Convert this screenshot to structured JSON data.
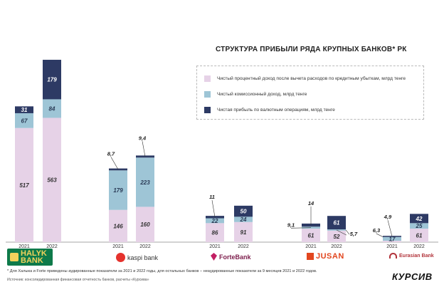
{
  "chart_data": {
    "type": "bar",
    "stacked": true,
    "title": "СТРУКТУРА ПРИБЫЛИ РЯДА КРУПНЫХ БАНКОВ* РК",
    "x": [
      "2021",
      "2022"
    ],
    "banks": [
      {
        "name": "Halyk Bank",
        "logo_text": [
          "HALYK",
          "BANK"
        ],
        "years": [
          {
            "year": "2021",
            "values": [
              517,
              67,
              31
            ],
            "labels": [
              "517",
              "67",
              "31"
            ]
          },
          {
            "year": "2022",
            "values": [
              563,
              84,
              179
            ],
            "labels": [
              "563",
              "84",
              "179"
            ]
          }
        ]
      },
      {
        "name": "kaspi bank",
        "logo_text": [
          "kaspi bank"
        ],
        "years": [
          {
            "year": "2021",
            "values": [
              146,
              179,
              8.7
            ],
            "labels": [
              "146",
              "179",
              "8,7"
            ]
          },
          {
            "year": "2022",
            "values": [
              160,
              223,
              9.4
            ],
            "labels": [
              "160",
              "223",
              "9,4"
            ]
          }
        ]
      },
      {
        "name": "ForteBank",
        "logo_text": [
          "ForteBank"
        ],
        "years": [
          {
            "year": "2021",
            "values": [
              86,
              22,
              11
            ],
            "labels": [
              "86",
              "22",
              "11"
            ]
          },
          {
            "year": "2022",
            "values": [
              91,
              24,
              50
            ],
            "labels": [
              "91",
              "24",
              "50"
            ]
          }
        ]
      },
      {
        "name": "JUSAN",
        "logo_text": [
          "JUSAN"
        ],
        "years": [
          {
            "year": "2021",
            "values": [
              61,
              9.1,
              14
            ],
            "labels": [
              "61",
              "9,1",
              "14"
            ]
          },
          {
            "year": "2022",
            "values": [
              52,
              5.7,
              61
            ],
            "labels": [
              "52",
              "5,7",
              "61"
            ]
          }
        ]
      },
      {
        "name": "Eurasian Bank",
        "logo_text": [
          "Eurasian Bank"
        ],
        "years": [
          {
            "year": "2021",
            "values": [
              6.3,
              17,
              4.9
            ],
            "labels": [
              "6,3",
              "17",
              "4,9"
            ]
          },
          {
            "year": "2022",
            "values": [
              61,
              25,
              42
            ],
            "labels": [
              "61",
              "25",
              "42"
            ]
          }
        ]
      }
    ],
    "series": [
      {
        "name": "Чистый процентный доход после вычета расходов по кредитным убыткам, млрд тенге",
        "color": "#e6d2e7",
        "label_color": "#333333"
      },
      {
        "name": "Чистый комиссионный доход, млрд тенге",
        "color": "#9ec5d6",
        "label_color": "#2a3a55"
      },
      {
        "name": "Чистая прибыль по валютным операциям, млрд тенге",
        "color": "#2d3a64",
        "label_color": "#ffffff"
      }
    ],
    "legend_position": "top-right",
    "grid": false
  },
  "footnote": "* Для Халыка и Forte приведены аудированные показатели за 2021 и 2022 годы, для остальных банков – неаудированные показатели за 9 месяцев 2021 и 2022 годов.",
  "source": "Источник: консолидированная финансовая отчетность банков, расчеты «Курсива»",
  "publisher_logo": "КУРСИВ"
}
